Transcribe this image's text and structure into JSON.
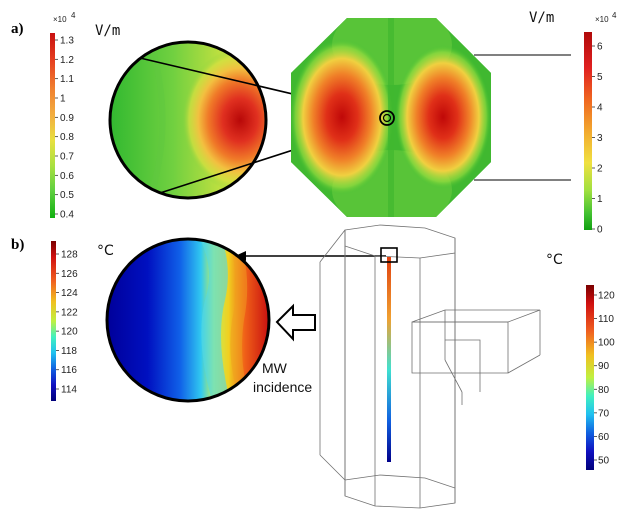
{
  "panels": {
    "a": {
      "label": "a)",
      "left_colorbar": {
        "unit": "V/m",
        "multiplier": "×10",
        "exponent": "4",
        "ticks": [
          "1.3",
          "1.2",
          "1.1",
          "1",
          "0.9",
          "0.8",
          "0.7",
          "0.6",
          "0.5",
          "0.4"
        ],
        "colors": [
          "#c81010",
          "#e64020",
          "#f08030",
          "#f2b040",
          "#e8e040",
          "#a8e040",
          "#60d040",
          "#30c030",
          "#10b010"
        ]
      },
      "right_colorbar": {
        "unit": "V/m",
        "multiplier": "×10",
        "exponent": "4",
        "ticks": [
          "6",
          "5",
          "4",
          "3",
          "2",
          "1",
          "0"
        ],
        "colors": [
          "#b00a0a",
          "#e02020",
          "#f06a20",
          "#f2b030",
          "#f0e040",
          "#a0e040",
          "#40c030",
          "#10a010"
        ]
      }
    },
    "b": {
      "label": "b)",
      "left_colorbar": {
        "unit": "°C",
        "ticks": [
          "128",
          "126",
          "124",
          "122",
          "120",
          "118",
          "116",
          "114"
        ],
        "colors": [
          "#7a0000",
          "#d01010",
          "#f06020",
          "#f0c020",
          "#c0f040",
          "#40f0c0",
          "#20c0f0",
          "#1060e0",
          "#1010c0",
          "#00007a"
        ]
      },
      "right_colorbar": {
        "unit": "°C",
        "ticks": [
          "120",
          "110",
          "100",
          "90",
          "80",
          "70",
          "60",
          "50"
        ],
        "colors": [
          "#7a0000",
          "#d01010",
          "#f06020",
          "#f0c020",
          "#c0f040",
          "#40f0c0",
          "#20c0f0",
          "#1060e0",
          "#1010c0",
          "#00007a"
        ]
      },
      "incidence_label": [
        "MW",
        "incidence"
      ]
    }
  }
}
